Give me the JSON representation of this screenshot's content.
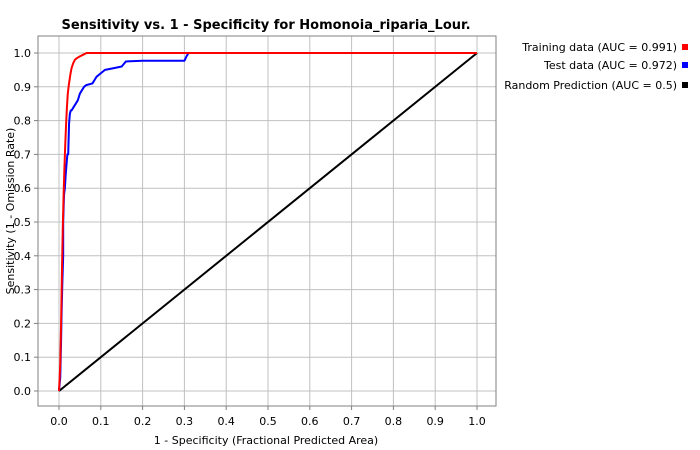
{
  "chart_data": {
    "type": "line",
    "title": "Sensitivity vs. 1 - Specificity for Homonoia_riparia_Lour.",
    "xlabel": "1 - Specificity  (Fractional Predicted Area)",
    "ylabel": "Sensitivity  (1 - Omission Rate)",
    "xlim": [
      0,
      1
    ],
    "ylim": [
      0,
      1
    ],
    "xticks": [
      "0.0",
      "0.1",
      "0.2",
      "0.3",
      "0.4",
      "0.5",
      "0.6",
      "0.7",
      "0.8",
      "0.9",
      "1.0"
    ],
    "yticks": [
      "0.0",
      "0.1",
      "0.2",
      "0.3",
      "0.4",
      "0.5",
      "0.6",
      "0.7",
      "0.8",
      "0.9",
      "1.0"
    ],
    "grid": true,
    "legend_position": "right",
    "series": [
      {
        "name": "Training data (AUC = 0.991)",
        "color": "#ff0000",
        "x": [
          0.0,
          0.003,
          0.005,
          0.007,
          0.009,
          0.011,
          0.013,
          0.015,
          0.017,
          0.019,
          0.021,
          0.024,
          0.027,
          0.03,
          0.034,
          0.038,
          0.043,
          0.05,
          0.058,
          0.066,
          0.07,
          0.1,
          0.3,
          1.0
        ],
        "y": [
          0.0,
          0.08,
          0.2,
          0.35,
          0.48,
          0.58,
          0.66,
          0.73,
          0.79,
          0.84,
          0.88,
          0.91,
          0.935,
          0.955,
          0.97,
          0.98,
          0.985,
          0.99,
          0.995,
          1.0,
          1.0,
          1.0,
          1.0,
          1.0
        ]
      },
      {
        "name": "Test data (AUC = 0.972)",
        "color": "#0000ff",
        "x": [
          0.0,
          0.003,
          0.005,
          0.006,
          0.008,
          0.01,
          0.01,
          0.012,
          0.014,
          0.016,
          0.018,
          0.02,
          0.022,
          0.024,
          0.026,
          0.028,
          0.03,
          0.035,
          0.04,
          0.045,
          0.05,
          0.055,
          0.06,
          0.065,
          0.08,
          0.09,
          0.1,
          0.11,
          0.13,
          0.15,
          0.16,
          0.2,
          0.25,
          0.3,
          0.305,
          0.31,
          0.5,
          1.0
        ],
        "y": [
          0.0,
          0.04,
          0.15,
          0.22,
          0.32,
          0.4,
          0.5,
          0.58,
          0.6,
          0.64,
          0.67,
          0.7,
          0.7,
          0.79,
          0.82,
          0.83,
          0.83,
          0.84,
          0.85,
          0.86,
          0.88,
          0.89,
          0.9,
          0.905,
          0.91,
          0.93,
          0.94,
          0.95,
          0.955,
          0.96,
          0.975,
          0.977,
          0.977,
          0.977,
          0.99,
          1.0,
          1.0,
          1.0
        ]
      },
      {
        "name": "Random Prediction (AUC = 0.5)",
        "color": "#000000",
        "x": [
          0.0,
          1.0
        ],
        "y": [
          0.0,
          1.0
        ]
      }
    ]
  }
}
